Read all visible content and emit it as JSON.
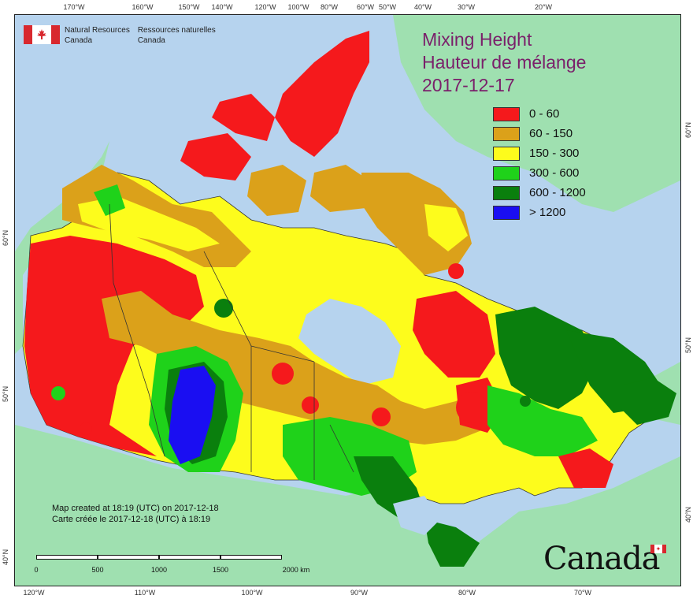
{
  "title": {
    "line1": "Mixing Height",
    "line2": "Hauteur de mélange",
    "date": "2017-12-17"
  },
  "legend": [
    {
      "label": "0 - 60",
      "color": "#f5191c"
    },
    {
      "label": "60 - 150",
      "color": "#dba11a"
    },
    {
      "label": "150 - 300",
      "color": "#fdfc1c"
    },
    {
      "label": "300 - 600",
      "color": "#1fd21a"
    },
    {
      "label": "600 - 1200",
      "color": "#0a7f0d"
    },
    {
      "label": "> 1200",
      "color": "#1a0ef2"
    }
  ],
  "agency": {
    "en_line1": "Natural Resources",
    "en_line2": "Canada",
    "fr_line1": "Ressources naturelles",
    "fr_line2": "Canada"
  },
  "credits": {
    "line1": "Map created at 18:19 (UTC) on 2017-12-18",
    "line2": "Carte créée le 2017-12-18 (UTC) à 18:19"
  },
  "scalebar": {
    "labels": [
      "0",
      "500",
      "1000",
      "1500",
      "2000 km"
    ]
  },
  "wordmark": "Canada",
  "graticule": {
    "top": [
      "170°W",
      "160°W",
      "150°W",
      "140°W",
      "120°W",
      "100°W",
      "80°W",
      "60°W",
      "50°W",
      "40°W",
      "30°W",
      "20°W"
    ],
    "bottom": [
      "120°W",
      "110°W",
      "100°W",
      "90°W",
      "80°W",
      "70°W"
    ],
    "left": [
      "60°N",
      "50°N",
      "40°N"
    ],
    "right": [
      "60°N",
      "50°N",
      "40°N"
    ]
  },
  "colors": {
    "ocean": "#b6d3ee",
    "foreign_land": "#9fe0b0",
    "border": "#333333"
  }
}
